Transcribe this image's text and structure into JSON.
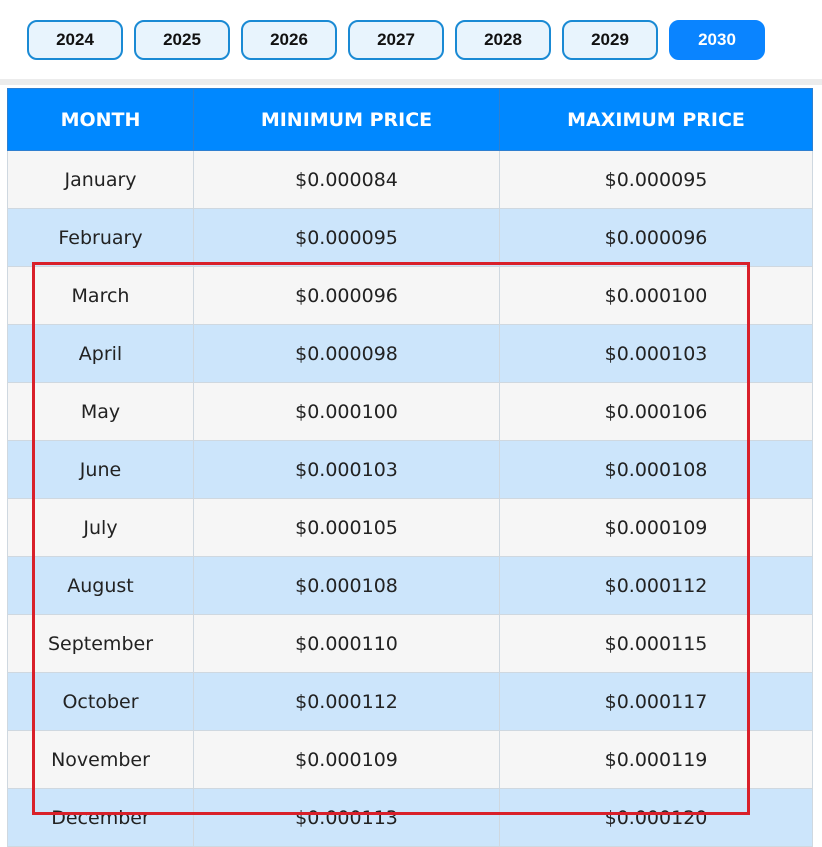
{
  "tabs": [
    "2024",
    "2025",
    "2026",
    "2027",
    "2028",
    "2029",
    "2030"
  ],
  "table": {
    "header": [
      "MONTH",
      "MINIMUM PRICE",
      "MAXIMUM PRICE"
    ],
    "rows": [
      [
        "January",
        "$0.000084",
        "$0.000095"
      ],
      [
        "February",
        "$0.000095",
        "$0.000096"
      ],
      [
        "March",
        "$0.000096",
        "$0.000100"
      ],
      [
        "April",
        "$0.000098",
        "$0.000103"
      ],
      [
        "May",
        "$0.000100",
        "$0.000106"
      ],
      [
        "June",
        "$0.000103",
        "$0.000108"
      ],
      [
        "July",
        "$0.000105",
        "$0.000109"
      ],
      [
        "August",
        "$0.000108",
        "$0.000112"
      ],
      [
        "September",
        "$0.000110",
        "$0.000115"
      ],
      [
        "October",
        "$0.000112",
        "$0.000117"
      ],
      [
        "November",
        "$0.000109",
        "$0.000119"
      ],
      [
        "December",
        "$0.000113",
        "$0.000120"
      ]
    ]
  }
}
